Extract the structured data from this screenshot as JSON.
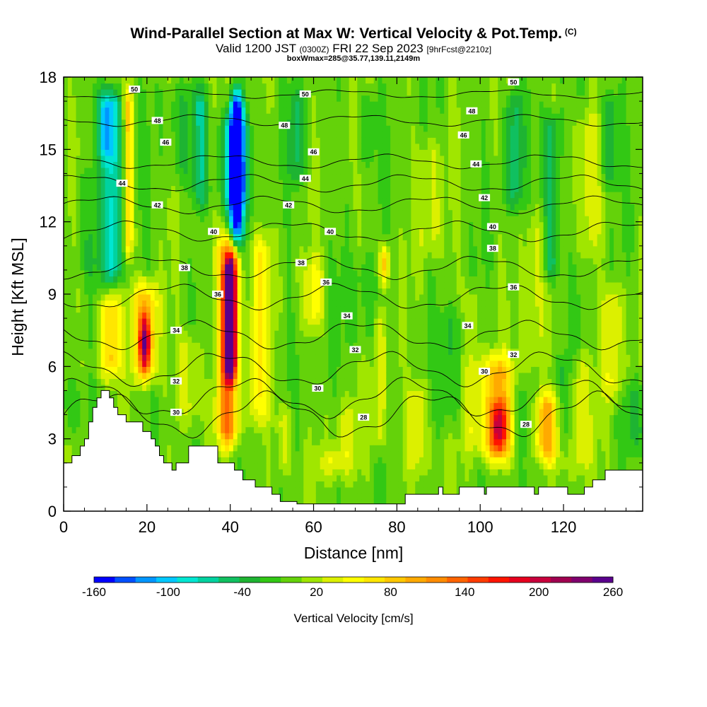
{
  "header": {
    "title": "Wind-Parallel Section at Max W: Vertical Velocity & Pot.Temp.",
    "title_mark": "(C)",
    "valid_prefix": "Valid 1200 JST",
    "valid_zulu": "(0300Z)",
    "valid_date": "FRI 22 Sep 2023",
    "forecast_tag": "[9hrFcst@2210z]",
    "box_info": "boxWmax=285@35.77,139.11,2149m"
  },
  "chart_data": {
    "type": "heatmap",
    "xlabel": "Distance [nm]",
    "ylabel": "Height [Kft MSL]",
    "xlim": [
      0,
      139
    ],
    "ylim": [
      0,
      18
    ],
    "x_ticks": [
      "0",
      "20",
      "40",
      "60",
      "80",
      "100",
      "120"
    ],
    "x_tick_values": [
      0,
      20,
      40,
      60,
      80,
      100,
      120
    ],
    "y_ticks": [
      "0",
      "3",
      "6",
      "9",
      "12",
      "15",
      "18"
    ],
    "y_tick_values": [
      0,
      3,
      6,
      9,
      12,
      15,
      18
    ],
    "colorbar": {
      "title": "Vertical Velocity [cm/s]",
      "labels": [
        "-160",
        "-100",
        "-40",
        "20",
        "80",
        "140",
        "200",
        "260"
      ],
      "colors": [
        "#0000ff",
        "#0050ff",
        "#0096ff",
        "#00c8ff",
        "#00e6d2",
        "#00d2a0",
        "#10c060",
        "#1eb432",
        "#32c814",
        "#64d20a",
        "#a0e600",
        "#dcf000",
        "#ffff00",
        "#ffe600",
        "#ffc800",
        "#ffaa00",
        "#ff8c00",
        "#ff6400",
        "#ff3c00",
        "#ff1400",
        "#e6001e",
        "#c8003c",
        "#a00050",
        "#80006e",
        "#5a008c"
      ]
    },
    "terrain": [
      [
        0,
        2
      ],
      [
        2,
        2
      ],
      [
        2,
        2.3
      ],
      [
        4,
        2.3
      ],
      [
        4,
        2.7
      ],
      [
        5,
        2.7
      ],
      [
        5,
        3
      ],
      [
        6,
        3
      ],
      [
        6,
        3.7
      ],
      [
        7,
        3.7
      ],
      [
        7,
        4.3
      ],
      [
        8,
        4.3
      ],
      [
        8,
        4.7
      ],
      [
        9,
        4.7
      ],
      [
        9,
        5
      ],
      [
        11,
        5
      ],
      [
        11,
        4.7
      ],
      [
        12,
        4.7
      ],
      [
        12,
        4.3
      ],
      [
        13,
        4.3
      ],
      [
        13,
        4
      ],
      [
        15,
        4
      ],
      [
        15,
        3.7
      ],
      [
        19,
        3.7
      ],
      [
        19,
        3.3
      ],
      [
        21,
        3.3
      ],
      [
        21,
        3
      ],
      [
        22,
        3
      ],
      [
        22,
        2.7
      ],
      [
        23,
        2.7
      ],
      [
        23,
        2.3
      ],
      [
        24,
        2.3
      ],
      [
        24,
        2
      ],
      [
        26,
        2
      ],
      [
        26,
        1.7
      ],
      [
        27,
        1.7
      ],
      [
        27,
        2
      ],
      [
        30,
        2
      ],
      [
        30,
        2.7
      ],
      [
        37,
        2.7
      ],
      [
        37,
        2
      ],
      [
        41,
        2
      ],
      [
        41,
        1.7
      ],
      [
        43,
        1.7
      ],
      [
        43,
        1.3
      ],
      [
        46,
        1.3
      ],
      [
        46,
        1
      ],
      [
        50,
        1
      ],
      [
        50,
        0.7
      ],
      [
        52,
        0.7
      ],
      [
        52,
        0.4
      ],
      [
        56,
        0.4
      ],
      [
        56,
        0.3
      ],
      [
        82,
        0.3
      ],
      [
        82,
        0.7
      ],
      [
        90,
        0.7
      ],
      [
        90,
        1
      ],
      [
        91,
        1
      ],
      [
        91,
        0.7
      ],
      [
        95,
        0.7
      ],
      [
        95,
        1
      ],
      [
        101,
        1
      ],
      [
        101,
        0.7
      ],
      [
        101.5,
        0.7
      ],
      [
        101.5,
        1
      ],
      [
        113,
        1
      ],
      [
        113,
        0.7
      ],
      [
        114,
        0.7
      ],
      [
        114,
        1
      ],
      [
        121,
        1
      ],
      [
        121,
        0.7
      ],
      [
        125,
        0.7
      ],
      [
        125,
        1
      ],
      [
        127,
        1
      ],
      [
        127,
        1.3
      ],
      [
        130,
        1.3
      ],
      [
        130,
        1.7
      ],
      [
        139,
        1.7
      ]
    ],
    "theta_contours": [
      {
        "label": "28",
        "y": 4.0,
        "amp": 0.8
      },
      {
        "label": "30",
        "y": 4.7,
        "amp": 0.7
      },
      {
        "label": "32",
        "y": 5.9,
        "amp": 0.6
      },
      {
        "label": "34",
        "y": 7.3,
        "amp": 0.5
      },
      {
        "label": "36",
        "y": 8.9,
        "amp": 0.45
      },
      {
        "label": "38",
        "y": 10.1,
        "amp": 0.4
      },
      {
        "label": "40",
        "y": 11.6,
        "amp": 0.35
      },
      {
        "label": "42",
        "y": 12.7,
        "amp": 0.3
      },
      {
        "label": "44",
        "y": 13.6,
        "amp": 0.3
      },
      {
        "label": "46",
        "y": 14.5,
        "amp": 0.25
      },
      {
        "label": "48",
        "y": 16.2,
        "amp": 0.2
      },
      {
        "label": "50",
        "y": 17.3,
        "amp": 0.15
      }
    ],
    "contour_labels": [
      {
        "text": "50",
        "x": 17,
        "y": 17.5
      },
      {
        "text": "48",
        "x": 22.5,
        "y": 16.2
      },
      {
        "text": "46",
        "x": 24.5,
        "y": 15.3
      },
      {
        "text": "44",
        "x": 14,
        "y": 13.6
      },
      {
        "text": "42",
        "x": 22.5,
        "y": 12.7
      },
      {
        "text": "40",
        "x": 36,
        "y": 11.6
      },
      {
        "text": "38",
        "x": 29,
        "y": 10.1
      },
      {
        "text": "36",
        "x": 37,
        "y": 9.0
      },
      {
        "text": "34",
        "x": 27,
        "y": 7.5
      },
      {
        "text": "32",
        "x": 27,
        "y": 5.4
      },
      {
        "text": "30",
        "x": 27,
        "y": 4.1
      },
      {
        "text": "50",
        "x": 58,
        "y": 17.3
      },
      {
        "text": "48",
        "x": 53,
        "y": 16.0
      },
      {
        "text": "46",
        "x": 60,
        "y": 14.9
      },
      {
        "text": "44",
        "x": 58,
        "y": 13.8
      },
      {
        "text": "42",
        "x": 54,
        "y": 12.7
      },
      {
        "text": "40",
        "x": 64,
        "y": 11.6
      },
      {
        "text": "38",
        "x": 57,
        "y": 10.3
      },
      {
        "text": "36",
        "x": 63,
        "y": 9.5
      },
      {
        "text": "34",
        "x": 68,
        "y": 8.1
      },
      {
        "text": "32",
        "x": 70,
        "y": 6.7
      },
      {
        "text": "30",
        "x": 61,
        "y": 5.1
      },
      {
        "text": "28",
        "x": 72,
        "y": 3.9
      },
      {
        "text": "50",
        "x": 108,
        "y": 17.8
      },
      {
        "text": "48",
        "x": 98,
        "y": 16.6
      },
      {
        "text": "46",
        "x": 96,
        "y": 15.6
      },
      {
        "text": "44",
        "x": 99,
        "y": 14.4
      },
      {
        "text": "42",
        "x": 101,
        "y": 13.0
      },
      {
        "text": "40",
        "x": 103,
        "y": 11.8
      },
      {
        "text": "38",
        "x": 103,
        "y": 10.9
      },
      {
        "text": "36",
        "x": 108,
        "y": 9.3
      },
      {
        "text": "34",
        "x": 97,
        "y": 7.7
      },
      {
        "text": "32",
        "x": 108,
        "y": 6.5
      },
      {
        "text": "30",
        "x": 101,
        "y": 5.8
      },
      {
        "text": "28",
        "x": 111,
        "y": 3.6
      }
    ],
    "features": [
      {
        "x": 41.5,
        "y0": 10.5,
        "y1": 18,
        "w": 1.6,
        "value": -160
      },
      {
        "x": 41,
        "y0": 12,
        "y1": 17,
        "w": 3,
        "value": -100
      },
      {
        "x": 12,
        "y0": 9,
        "y1": 18,
        "w": 2.5,
        "value": -80
      },
      {
        "x": 10,
        "y0": 14,
        "y1": 18,
        "w": 2,
        "value": -70
      },
      {
        "x": 117,
        "y0": 9,
        "y1": 17,
        "w": 2,
        "value": -60
      },
      {
        "x": 108,
        "y0": 12,
        "y1": 18,
        "w": 2,
        "value": -50
      },
      {
        "x": 33,
        "y0": 12,
        "y1": 18,
        "w": 2,
        "value": -55
      },
      {
        "x": 56,
        "y0": 13,
        "y1": 18,
        "w": 2,
        "value": -40
      },
      {
        "x": 131,
        "y0": 13,
        "y1": 18,
        "w": 2,
        "value": -40
      },
      {
        "x": 73,
        "y0": 14,
        "y1": 18,
        "w": 2,
        "value": -30
      },
      {
        "x": 39.5,
        "y0": 2.2,
        "y1": 12,
        "w": 2.4,
        "value": 130
      },
      {
        "x": 40,
        "y0": 5,
        "y1": 11,
        "w": 1.4,
        "value": 230
      },
      {
        "x": 19.5,
        "y0": 4.8,
        "y1": 10,
        "w": 2.8,
        "value": 100
      },
      {
        "x": 19.5,
        "y0": 5.5,
        "y1": 8.5,
        "w": 1.3,
        "value": 150
      },
      {
        "x": 11,
        "y0": 5,
        "y1": 9.5,
        "w": 2.4,
        "value": 80
      },
      {
        "x": 15.5,
        "y0": 10,
        "y1": 18,
        "w": 1.2,
        "value": 80
      },
      {
        "x": 104,
        "y0": 1.5,
        "y1": 7,
        "w": 4,
        "value": 90
      },
      {
        "x": 104.5,
        "y0": 2,
        "y1": 5,
        "w": 2,
        "value": 120
      },
      {
        "x": 116,
        "y0": 1.5,
        "y1": 5.5,
        "w": 3,
        "value": 100
      },
      {
        "x": 77,
        "y0": 8.8,
        "y1": 11.6,
        "w": 1.2,
        "value": 90
      },
      {
        "x": 47,
        "y0": 3,
        "y1": 12,
        "w": 2.5,
        "value": 50
      },
      {
        "x": 60,
        "y0": 7,
        "y1": 11,
        "w": 2.5,
        "value": 45
      },
      {
        "x": 76,
        "y0": 2,
        "y1": 9,
        "w": 1.5,
        "value": 40
      },
      {
        "x": 85,
        "y0": 1,
        "y1": 6,
        "w": 3,
        "value": 35
      },
      {
        "x": 124,
        "y0": 1,
        "y1": 7,
        "w": 2.5,
        "value": 40
      },
      {
        "x": 132,
        "y0": 4,
        "y1": 10,
        "w": 2.5,
        "value": 40
      },
      {
        "x": 88,
        "y0": 10,
        "y1": 16,
        "w": 3,
        "value": 30
      },
      {
        "x": 68,
        "y0": 1,
        "y1": 5,
        "w": 3,
        "value": 30
      },
      {
        "x": 30,
        "y0": 3,
        "y1": 8,
        "w": 3,
        "value": 35
      },
      {
        "x": 98,
        "y0": 2,
        "y1": 10,
        "w": 2,
        "value": 30
      },
      {
        "x": 64,
        "y0": 1,
        "y1": 3,
        "w": 3,
        "value": 45
      },
      {
        "x": 53,
        "y0": 1,
        "y1": 5,
        "w": 2,
        "value": 40
      },
      {
        "x": 126,
        "y0": 10,
        "y1": 17,
        "w": 3,
        "value": 30
      },
      {
        "x": 113,
        "y0": 5,
        "y1": 13,
        "w": 3,
        "value": 25
      },
      {
        "x": 3,
        "y0": 2.5,
        "y1": 6,
        "w": 4,
        "value": -20
      },
      {
        "x": 6,
        "y0": 9,
        "y1": 15,
        "w": 3,
        "value": -20
      },
      {
        "x": 28,
        "y0": 13,
        "y1": 18,
        "w": 3,
        "value": -25
      },
      {
        "x": 72,
        "y0": 6,
        "y1": 11,
        "w": 4,
        "value": -20
      },
      {
        "x": 93,
        "y0": 3,
        "y1": 9,
        "w": 3,
        "value": -25
      },
      {
        "x": 120,
        "y0": 2,
        "y1": 7,
        "w": 2,
        "value": -30
      },
      {
        "x": 137,
        "y0": 2,
        "y1": 6,
        "w": 3,
        "value": -30
      },
      {
        "x": 110,
        "y0": 2,
        "y1": 6,
        "w": 2,
        "value": -20
      }
    ]
  }
}
